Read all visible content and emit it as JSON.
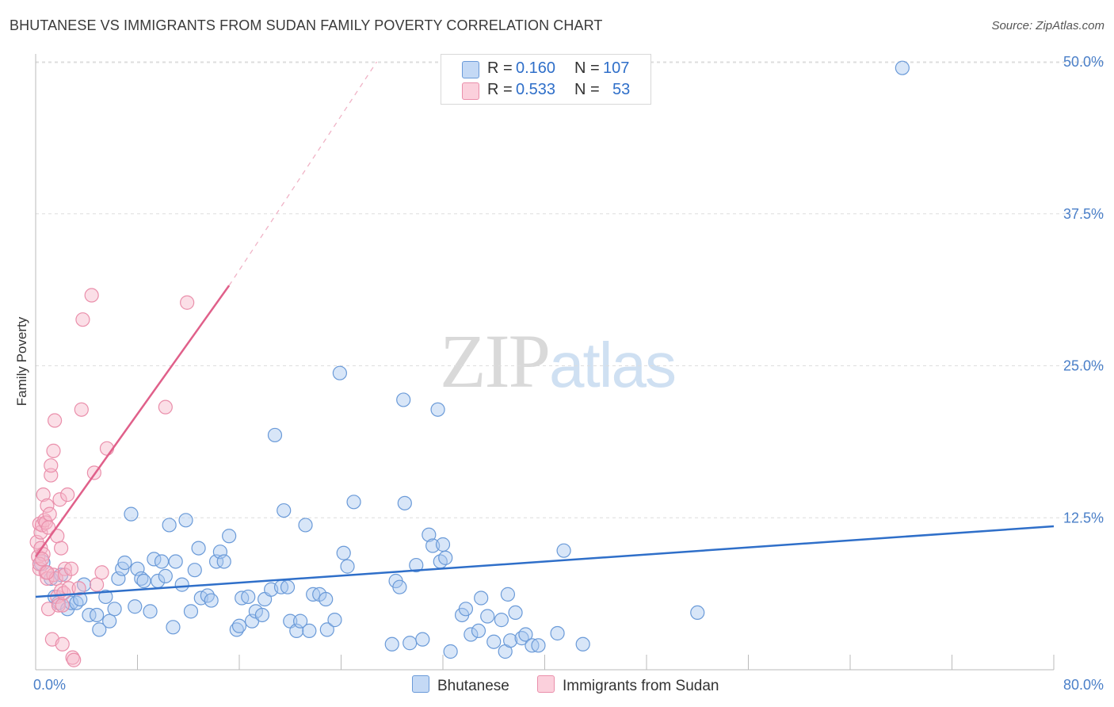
{
  "title": "BHUTANESE VS IMMIGRANTS FROM SUDAN FAMILY POVERTY CORRELATION CHART",
  "source": "Source: ZipAtlas.com",
  "watermark": {
    "zip": "ZIP",
    "atlas": "atlas"
  },
  "legend": {
    "r_label": "R =",
    "n_label": "N =",
    "rows": [
      {
        "name": "Bhutanese",
        "r": "0.160",
        "n": "107"
      },
      {
        "name": "Immigrants from Sudan",
        "r": "0.533",
        "n": "53"
      }
    ]
  },
  "colors": {
    "blue_fill": "#a9c7f0",
    "blue_stroke": "#6a9ad8",
    "blue_line": "#2f6fc9",
    "pink_fill": "#f6b7c9",
    "pink_stroke": "#ea8fab",
    "pink_line": "#e0608a",
    "grid": "#dddddd",
    "tick_text": "#4a7fc8"
  },
  "chart_data": {
    "type": "scatter",
    "title": "BHUTANESE VS IMMIGRANTS FROM SUDAN FAMILY POVERTY CORRELATION CHART",
    "xlabel": "",
    "ylabel": "Family Poverty",
    "xlim": [
      0,
      80
    ],
    "ylim": [
      0,
      50
    ],
    "x_tick_labels": [
      {
        "value": 0,
        "label": "0.0%"
      },
      {
        "value": 80,
        "label": "80.0%"
      }
    ],
    "x_minor_ticks": [
      8,
      16,
      24,
      32,
      40,
      48,
      56,
      64,
      72,
      80
    ],
    "y_ticks": [
      {
        "value": 12.5,
        "label": "12.5%"
      },
      {
        "value": 25,
        "label": "25.0%"
      },
      {
        "value": 37.5,
        "label": "37.5%"
      },
      {
        "value": 50,
        "label": "50.0%"
      }
    ],
    "series": [
      {
        "name": "Bhutanese",
        "r": 0.16,
        "n": 107,
        "trend": {
          "x0": 0,
          "y0": 6.0,
          "x1": 80,
          "y1": 11.8
        },
        "points": [
          [
            0.5,
            8.8
          ],
          [
            1.2,
            7.5
          ],
          [
            1.5,
            6.0
          ],
          [
            1.8,
            5.5
          ],
          [
            2.0,
            7.8
          ],
          [
            2.5,
            5.0
          ],
          [
            2.8,
            5.5
          ],
          [
            3.2,
            5.5
          ],
          [
            3.5,
            5.8
          ],
          [
            3.8,
            7.0
          ],
          [
            4.2,
            4.5
          ],
          [
            4.8,
            4.5
          ],
          [
            5.0,
            3.3
          ],
          [
            5.5,
            6.0
          ],
          [
            5.8,
            4.0
          ],
          [
            6.2,
            5.0
          ],
          [
            6.5,
            7.5
          ],
          [
            6.8,
            8.3
          ],
          [
            7.0,
            8.8
          ],
          [
            7.5,
            12.8
          ],
          [
            7.8,
            5.2
          ],
          [
            8.0,
            8.3
          ],
          [
            8.3,
            7.5
          ],
          [
            8.5,
            7.3
          ],
          [
            9.0,
            4.8
          ],
          [
            9.3,
            9.1
          ],
          [
            9.6,
            7.3
          ],
          [
            9.9,
            8.9
          ],
          [
            10.2,
            7.7
          ],
          [
            10.5,
            11.9
          ],
          [
            10.8,
            3.5
          ],
          [
            11.0,
            8.9
          ],
          [
            11.5,
            7.0
          ],
          [
            11.8,
            12.3
          ],
          [
            12.2,
            4.8
          ],
          [
            12.5,
            8.2
          ],
          [
            12.8,
            10.0
          ],
          [
            13.0,
            5.9
          ],
          [
            13.5,
            6.1
          ],
          [
            13.8,
            5.7
          ],
          [
            14.2,
            8.9
          ],
          [
            14.5,
            9.7
          ],
          [
            14.8,
            8.9
          ],
          [
            15.2,
            11.0
          ],
          [
            15.8,
            3.3
          ],
          [
            16.0,
            3.6
          ],
          [
            16.2,
            5.9
          ],
          [
            16.7,
            6.0
          ],
          [
            17.0,
            4.0
          ],
          [
            17.3,
            4.8
          ],
          [
            17.8,
            4.5
          ],
          [
            18.0,
            5.8
          ],
          [
            18.5,
            6.6
          ],
          [
            18.8,
            19.3
          ],
          [
            19.3,
            6.8
          ],
          [
            19.5,
            13.1
          ],
          [
            19.8,
            6.8
          ],
          [
            20.0,
            4.0
          ],
          [
            20.5,
            3.2
          ],
          [
            20.8,
            4.0
          ],
          [
            21.2,
            11.9
          ],
          [
            21.5,
            3.2
          ],
          [
            21.8,
            6.2
          ],
          [
            22.3,
            6.2
          ],
          [
            22.8,
            5.8
          ],
          [
            22.9,
            3.3
          ],
          [
            23.5,
            4.1
          ],
          [
            23.9,
            24.4
          ],
          [
            24.2,
            9.6
          ],
          [
            24.5,
            8.5
          ],
          [
            25.0,
            13.8
          ],
          [
            28.0,
            2.1
          ],
          [
            28.3,
            7.3
          ],
          [
            28.6,
            6.8
          ],
          [
            29.0,
            13.7
          ],
          [
            28.9,
            22.2
          ],
          [
            29.4,
            2.2
          ],
          [
            29.9,
            8.6
          ],
          [
            30.4,
            2.5
          ],
          [
            30.9,
            11.1
          ],
          [
            31.2,
            10.2
          ],
          [
            31.8,
            8.9
          ],
          [
            32.0,
            10.3
          ],
          [
            31.6,
            21.4
          ],
          [
            32.2,
            9.2
          ],
          [
            32.6,
            1.5
          ],
          [
            33.5,
            4.5
          ],
          [
            33.8,
            5.0
          ],
          [
            34.2,
            2.9
          ],
          [
            34.8,
            3.2
          ],
          [
            35.0,
            5.9
          ],
          [
            35.5,
            4.4
          ],
          [
            36.0,
            2.3
          ],
          [
            36.6,
            4.1
          ],
          [
            36.9,
            1.5
          ],
          [
            37.1,
            6.2
          ],
          [
            37.3,
            2.4
          ],
          [
            37.7,
            4.7
          ],
          [
            38.2,
            2.6
          ],
          [
            38.5,
            2.9
          ],
          [
            39.0,
            2.0
          ],
          [
            39.5,
            2.0
          ],
          [
            41.0,
            3.0
          ],
          [
            41.5,
            9.8
          ],
          [
            43.0,
            2.1
          ],
          [
            52.0,
            4.7
          ],
          [
            68.1,
            49.5
          ]
        ]
      },
      {
        "name": "Immigrants from Sudan",
        "r": 0.533,
        "n": 53,
        "trend": {
          "x0": 0,
          "y0": 9.3,
          "x1": 15.2,
          "y1": 31.6,
          "dash_x1": 26.8,
          "dash_y1": 50.0
        },
        "points": [
          [
            0.1,
            10.5
          ],
          [
            0.2,
            9.3
          ],
          [
            0.3,
            12.0
          ],
          [
            0.3,
            8.3
          ],
          [
            0.4,
            11.3
          ],
          [
            0.4,
            10.0
          ],
          [
            0.5,
            11.9
          ],
          [
            0.6,
            14.4
          ],
          [
            0.6,
            9.5
          ],
          [
            0.7,
            12.3
          ],
          [
            0.8,
            8.0
          ],
          [
            0.8,
            12.1
          ],
          [
            0.9,
            7.5
          ],
          [
            0.9,
            13.5
          ],
          [
            1.0,
            11.7
          ],
          [
            1.0,
            5.0
          ],
          [
            1.1,
            12.8
          ],
          [
            1.2,
            16.0
          ],
          [
            1.2,
            16.8
          ],
          [
            1.3,
            2.5
          ],
          [
            1.4,
            18.0
          ],
          [
            1.4,
            7.8
          ],
          [
            1.5,
            20.5
          ],
          [
            1.6,
            7.5
          ],
          [
            1.7,
            6.0
          ],
          [
            1.7,
            11.0
          ],
          [
            1.8,
            5.3
          ],
          [
            1.9,
            14.0
          ],
          [
            2.0,
            10.0
          ],
          [
            2.0,
            6.5
          ],
          [
            2.1,
            5.3
          ],
          [
            2.1,
            2.1
          ],
          [
            2.2,
            6.3
          ],
          [
            2.3,
            8.3
          ],
          [
            2.3,
            7.8
          ],
          [
            2.5,
            14.4
          ],
          [
            2.6,
            6.7
          ],
          [
            2.8,
            8.3
          ],
          [
            2.9,
            1.0
          ],
          [
            3.0,
            0.8
          ],
          [
            3.4,
            6.7
          ],
          [
            3.6,
            21.4
          ],
          [
            3.7,
            28.8
          ],
          [
            4.4,
            30.8
          ],
          [
            4.6,
            16.2
          ],
          [
            4.8,
            7.0
          ],
          [
            5.2,
            8.0
          ],
          [
            5.6,
            18.2
          ],
          [
            10.2,
            21.6
          ],
          [
            11.9,
            30.2
          ],
          [
            0.3,
            8.7
          ],
          [
            0.5,
            9.1
          ],
          [
            0.9,
            8.0
          ]
        ]
      }
    ]
  }
}
